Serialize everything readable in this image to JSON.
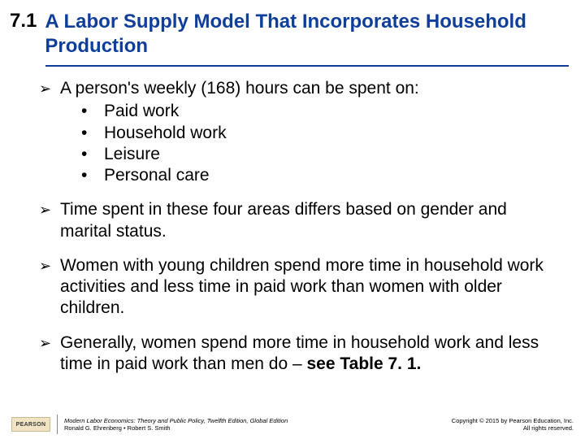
{
  "title": {
    "section_number": "7.1",
    "text": "A  Labor Supply Model That Incorporates Household Production",
    "color": "#0f3f9b",
    "fontsize": 24
  },
  "content": {
    "fontsize": 21,
    "text_color": "#000000",
    "arrow_glyph": "➢",
    "dot_glyph": "•",
    "blocks": [
      {
        "lead": "A person's weekly (168) hours can be spent on:",
        "sub": [
          "Paid work",
          "Household work",
          "Leisure",
          "Personal care"
        ]
      },
      {
        "lead": "Time spent in these four areas differs based on gender and marital status."
      },
      {
        "lead": "Women with young children spend more time in household work activities and less time in paid work than women with older children."
      },
      {
        "lead_prefix": "Generally, women spend more time in household work and less time in paid work than men do – ",
        "lead_bold": "see Table 7. 1."
      }
    ]
  },
  "footer": {
    "logo_text": "PEARSON",
    "book_title": "Modern Labor Economics: Theory and Public Policy, Twelfth Edition, Global Edition",
    "authors": "Ronald G. Ehrenberg • Robert S. Smith",
    "copyright_line1": "Copyright © 2015 by Pearson Education, Inc.",
    "copyright_line2": "All rights reserved."
  },
  "colors": {
    "background": "#ffffff",
    "accent": "#0f3f9b",
    "text": "#000000"
  }
}
